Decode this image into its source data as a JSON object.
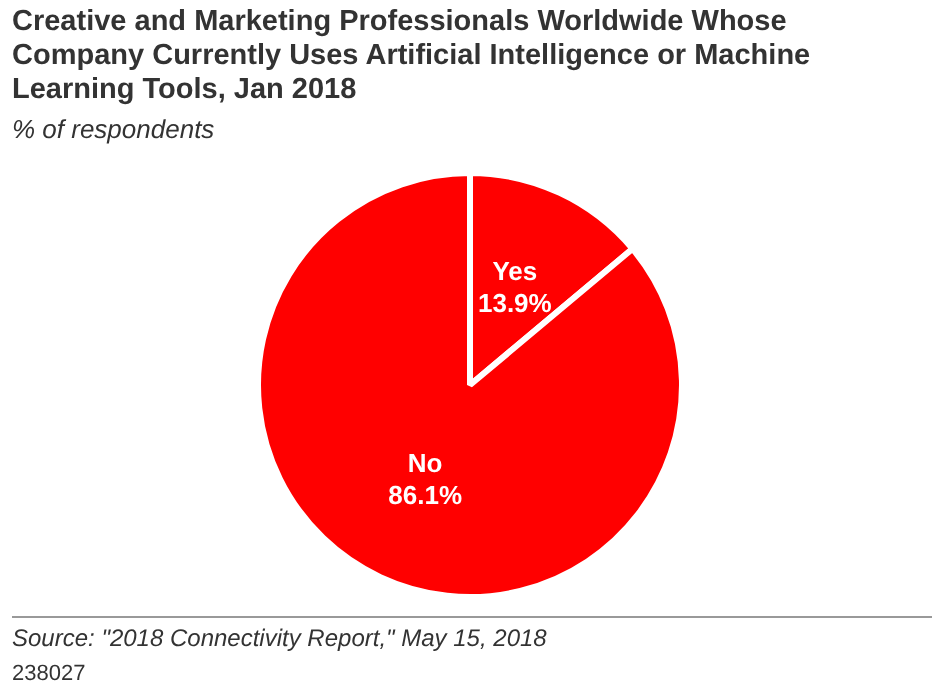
{
  "chart_data": {
    "type": "pie",
    "title": "Creative and Marketing Professionals Worldwide Whose Company Currently Uses Artificial Intelligence or Machine Learning Tools, Jan 2018",
    "subtitle": "% of respondents",
    "categories": [
      "Yes",
      "No"
    ],
    "values": [
      13.9,
      86.1
    ],
    "colors": [
      "#ff0000",
      "#ff0000"
    ],
    "value_labels": [
      "13.9%",
      "86.1%"
    ],
    "legend": false,
    "annotations": [
      "Source: \"2018 Connectivity Report,\" May 15, 2018",
      "238027"
    ]
  }
}
